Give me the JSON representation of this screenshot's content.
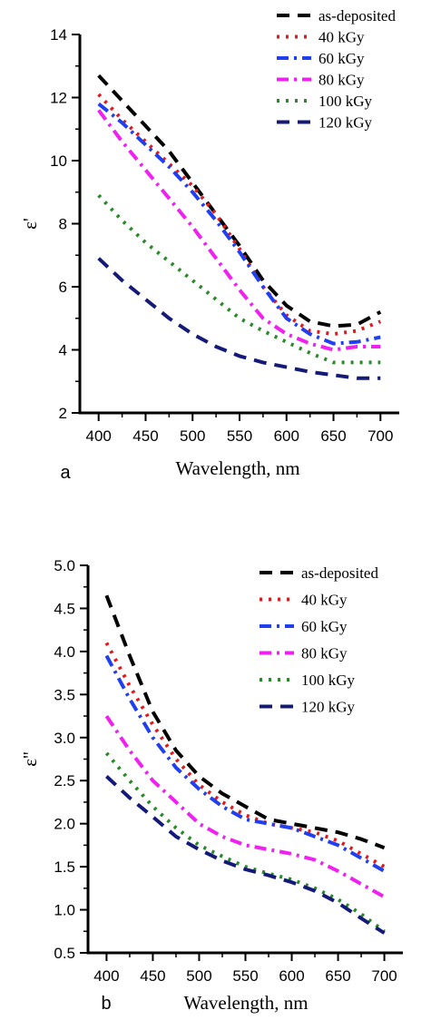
{
  "chart_data": [
    {
      "type": "line",
      "panel_label": "a",
      "xlabel": "Wavelength, nm",
      "ylabel": "ε'",
      "xlim": [
        380,
        720
      ],
      "ylim": [
        2,
        14
      ],
      "xticks": [
        400,
        450,
        500,
        550,
        600,
        650,
        700
      ],
      "yticks": [
        2,
        4,
        6,
        8,
        10,
        12,
        14
      ],
      "tick_labels_x": [
        "400",
        "450",
        "500",
        "550",
        "600",
        "650",
        "700"
      ],
      "tick_labels_y": [
        "2",
        "4",
        "6",
        "8",
        "10",
        "12",
        "14"
      ],
      "grid": false,
      "legend_position": "top-right",
      "series": [
        {
          "name": "as-deposited",
          "color": "#000000",
          "dash": "long-dash",
          "x": [
            400,
            425,
            450,
            475,
            500,
            525,
            550,
            575,
            600,
            625,
            650,
            675,
            700
          ],
          "y": [
            12.7,
            11.9,
            11.1,
            10.3,
            9.3,
            8.3,
            7.3,
            6.2,
            5.4,
            4.9,
            4.75,
            4.8,
            5.2
          ]
        },
        {
          "name": "40 kGy",
          "color": "#e31a1c",
          "dash": "dot",
          "x": [
            400,
            425,
            450,
            475,
            500,
            525,
            550,
            575,
            600,
            625,
            650,
            675,
            700
          ],
          "y": [
            12.1,
            11.3,
            10.6,
            9.9,
            9.2,
            8.3,
            7.2,
            6.0,
            5.1,
            4.6,
            4.5,
            4.6,
            4.9
          ]
        },
        {
          "name": "60 kGy",
          "color": "#1f3ff0",
          "dash": "dash-dot",
          "x": [
            400,
            425,
            450,
            475,
            500,
            525,
            550,
            575,
            600,
            625,
            650,
            675,
            700
          ],
          "y": [
            11.8,
            11.2,
            10.5,
            9.8,
            9.0,
            8.1,
            7.1,
            6.0,
            5.0,
            4.5,
            4.2,
            4.25,
            4.4
          ]
        },
        {
          "name": "80 kGy",
          "color": "#f020f0",
          "dash": "dash-dot",
          "x": [
            400,
            425,
            450,
            475,
            500,
            525,
            550,
            575,
            600,
            625,
            650,
            675,
            700
          ],
          "y": [
            11.6,
            10.6,
            9.7,
            8.8,
            7.9,
            6.9,
            5.9,
            5.0,
            4.5,
            4.2,
            4.0,
            4.1,
            4.1
          ]
        },
        {
          "name": "100 kGy",
          "color": "#2a8a2a",
          "dash": "dot",
          "x": [
            400,
            425,
            450,
            475,
            500,
            525,
            550,
            575,
            600,
            625,
            650,
            675,
            700
          ],
          "y": [
            8.9,
            8.1,
            7.4,
            6.8,
            6.2,
            5.6,
            5.0,
            4.6,
            4.25,
            3.9,
            3.6,
            3.6,
            3.6
          ]
        },
        {
          "name": "120 kGy",
          "color": "#141a78",
          "dash": "long-dash",
          "x": [
            400,
            425,
            450,
            475,
            500,
            525,
            550,
            575,
            600,
            625,
            650,
            675,
            700
          ],
          "y": [
            6.9,
            6.2,
            5.6,
            5.0,
            4.5,
            4.1,
            3.8,
            3.6,
            3.45,
            3.3,
            3.2,
            3.1,
            3.1
          ]
        }
      ]
    },
    {
      "type": "line",
      "panel_label": "b",
      "xlabel": "Wavelength, nm",
      "ylabel": "ε''",
      "xlim": [
        380,
        720
      ],
      "ylim": [
        0.5,
        5.0
      ],
      "xticks": [
        400,
        450,
        500,
        550,
        600,
        650,
        700
      ],
      "yticks": [
        0.5,
        1.0,
        1.5,
        2.0,
        2.5,
        3.0,
        3.5,
        4.0,
        4.5,
        5.0
      ],
      "tick_labels_x": [
        "400",
        "450",
        "500",
        "550",
        "600",
        "650",
        "700"
      ],
      "tick_labels_y": [
        "0.5",
        "1.0",
        "1.5",
        "2.0",
        "2.5",
        "3.0",
        "3.5",
        "4.0",
        "4.5",
        "5.0"
      ],
      "grid": false,
      "legend_position": "top-right",
      "series": [
        {
          "name": "as-deposited",
          "color": "#000000",
          "dash": "long-dash",
          "x": [
            400,
            425,
            450,
            475,
            500,
            525,
            550,
            575,
            600,
            625,
            650,
            675,
            700
          ],
          "y": [
            4.65,
            3.95,
            3.3,
            2.85,
            2.55,
            2.35,
            2.2,
            2.05,
            2.0,
            1.95,
            1.9,
            1.82,
            1.72
          ]
        },
        {
          "name": "40 kGy",
          "color": "#e31a1c",
          "dash": "dot",
          "x": [
            400,
            425,
            450,
            475,
            500,
            525,
            550,
            575,
            600,
            625,
            650,
            675,
            700
          ],
          "y": [
            4.1,
            3.6,
            3.15,
            2.75,
            2.45,
            2.25,
            2.1,
            2.0,
            1.95,
            1.9,
            1.8,
            1.65,
            1.5
          ]
        },
        {
          "name": "60 kGy",
          "color": "#1f3ff0",
          "dash": "dash-dot",
          "x": [
            400,
            425,
            450,
            475,
            500,
            525,
            550,
            575,
            600,
            625,
            650,
            675,
            700
          ],
          "y": [
            3.95,
            3.45,
            3.0,
            2.65,
            2.4,
            2.2,
            2.05,
            2.0,
            1.95,
            1.85,
            1.75,
            1.6,
            1.45
          ]
        },
        {
          "name": "80 kGy",
          "color": "#f020f0",
          "dash": "dash-dot",
          "x": [
            400,
            425,
            450,
            475,
            500,
            525,
            550,
            575,
            600,
            625,
            650,
            675,
            700
          ],
          "y": [
            3.25,
            2.85,
            2.5,
            2.25,
            2.0,
            1.85,
            1.75,
            1.7,
            1.65,
            1.58,
            1.45,
            1.3,
            1.15
          ]
        },
        {
          "name": "100 kGy",
          "color": "#2a8a2a",
          "dash": "dot",
          "x": [
            400,
            425,
            450,
            475,
            500,
            525,
            550,
            575,
            600,
            625,
            650,
            675,
            700
          ],
          "y": [
            2.82,
            2.5,
            2.2,
            1.95,
            1.75,
            1.62,
            1.5,
            1.42,
            1.35,
            1.25,
            1.12,
            0.95,
            0.75
          ]
        },
        {
          "name": "120 kGy",
          "color": "#141a78",
          "dash": "long-dash",
          "x": [
            400,
            425,
            450,
            475,
            500,
            525,
            550,
            575,
            600,
            625,
            650,
            675,
            700
          ],
          "y": [
            2.55,
            2.3,
            2.08,
            1.85,
            1.7,
            1.57,
            1.47,
            1.4,
            1.32,
            1.22,
            1.08,
            0.9,
            0.73
          ]
        }
      ]
    }
  ]
}
